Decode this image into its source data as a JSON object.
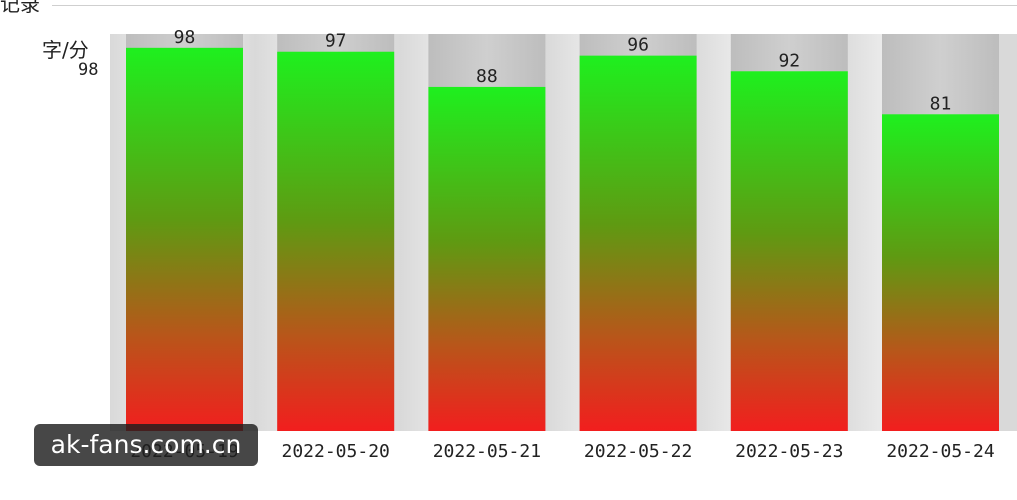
{
  "header": {
    "group_title": "记录"
  },
  "watermark": {
    "text": "ak-fans.com.cn"
  },
  "chart_data": {
    "type": "bar",
    "ylabel": "字/分",
    "ymax_label": "98",
    "categories": [
      "2022-05-19",
      "2022-05-20",
      "2022-05-21",
      "2022-05-22",
      "2022-05-23",
      "2022-05-24"
    ],
    "values": [
      98,
      97,
      88,
      96,
      92,
      81
    ],
    "ylim": [
      0,
      100
    ],
    "grid": false,
    "colors": {
      "top": "#1ef01e",
      "middle": "#8a7a14",
      "bottom": "#f21e1e",
      "track": "#c4c4c4"
    }
  }
}
